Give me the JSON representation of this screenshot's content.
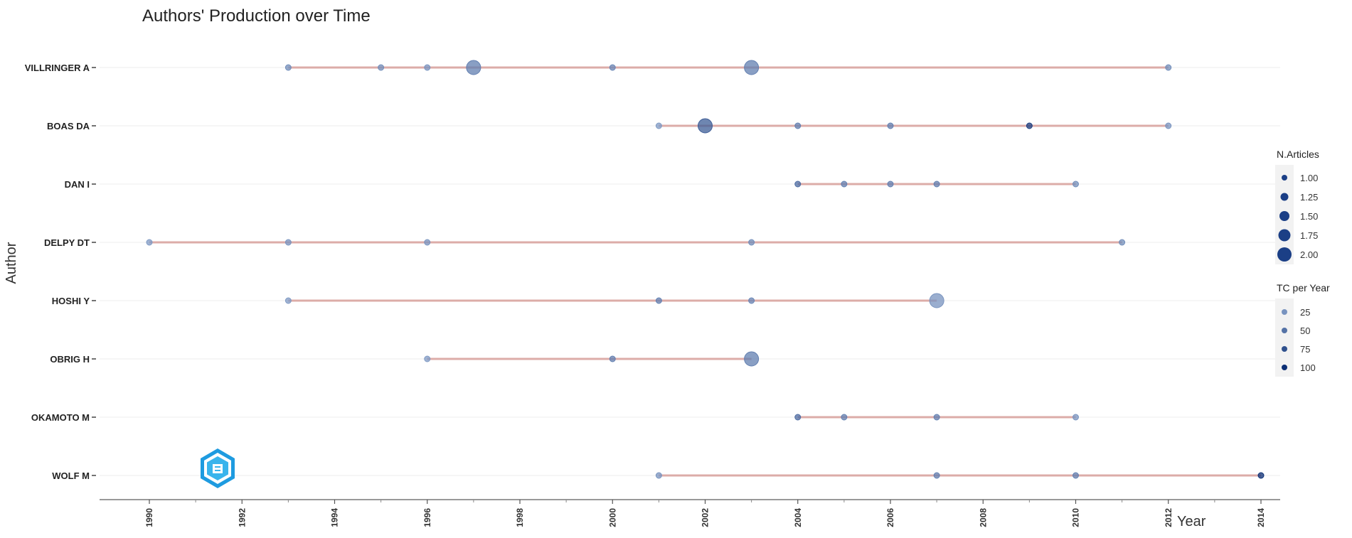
{
  "chart_data": {
    "type": "scatter",
    "title": "Authors' Production over Time",
    "xlabel": "Year",
    "ylabel": "Author",
    "xlim": [
      1989.5,
      2015.2
    ],
    "x_ticks": [
      1990,
      1992,
      1994,
      1996,
      1998,
      2000,
      2002,
      2004,
      2006,
      2008,
      2010,
      2012,
      2014
    ],
    "authors": [
      "VILLRINGER A",
      "BOAS DA",
      "DAN I",
      "DELPY DT",
      "HOSHI Y",
      "OBRIG H",
      "OKAMOTO M",
      "WOLF M"
    ],
    "series": [
      {
        "author": "VILLRINGER A",
        "points": [
          {
            "year": 1993,
            "articles": 1,
            "tc": 30
          },
          {
            "year": 1995,
            "articles": 1,
            "tc": 30
          },
          {
            "year": 1996,
            "articles": 1,
            "tc": 25
          },
          {
            "year": 1997,
            "articles": 2,
            "tc": 40
          },
          {
            "year": 2000,
            "articles": 1,
            "tc": 35
          },
          {
            "year": 2003,
            "articles": 2,
            "tc": 40
          },
          {
            "year": 2012,
            "articles": 1,
            "tc": 30
          }
        ]
      },
      {
        "author": "BOAS DA",
        "points": [
          {
            "year": 2001,
            "articles": 1,
            "tc": 20
          },
          {
            "year": 2002,
            "articles": 2,
            "tc": 65
          },
          {
            "year": 2004,
            "articles": 1,
            "tc": 40
          },
          {
            "year": 2006,
            "articles": 1,
            "tc": 40
          },
          {
            "year": 2009,
            "articles": 1,
            "tc": 90
          },
          {
            "year": 2012,
            "articles": 1,
            "tc": 25
          }
        ]
      },
      {
        "author": "DAN I",
        "points": [
          {
            "year": 2004,
            "articles": 1,
            "tc": 55
          },
          {
            "year": 2005,
            "articles": 1,
            "tc": 40
          },
          {
            "year": 2006,
            "articles": 1,
            "tc": 40
          },
          {
            "year": 2007,
            "articles": 1,
            "tc": 40
          },
          {
            "year": 2010,
            "articles": 1,
            "tc": 30
          }
        ]
      },
      {
        "author": "DELPY DT",
        "points": [
          {
            "year": 1990,
            "articles": 1,
            "tc": 20
          },
          {
            "year": 1993,
            "articles": 1,
            "tc": 25
          },
          {
            "year": 1996,
            "articles": 1,
            "tc": 25
          },
          {
            "year": 2003,
            "articles": 1,
            "tc": 30
          },
          {
            "year": 2011,
            "articles": 1,
            "tc": 30
          }
        ]
      },
      {
        "author": "HOSHI Y",
        "points": [
          {
            "year": 1993,
            "articles": 1,
            "tc": 20
          },
          {
            "year": 2001,
            "articles": 1,
            "tc": 40
          },
          {
            "year": 2003,
            "articles": 1,
            "tc": 35
          },
          {
            "year": 2007,
            "articles": 2,
            "tc": 25
          }
        ]
      },
      {
        "author": "OBRIG H",
        "points": [
          {
            "year": 1996,
            "articles": 1,
            "tc": 20
          },
          {
            "year": 2000,
            "articles": 1,
            "tc": 40
          },
          {
            "year": 2003,
            "articles": 2,
            "tc": 40
          }
        ]
      },
      {
        "author": "OKAMOTO M",
        "points": [
          {
            "year": 2004,
            "articles": 1,
            "tc": 55
          },
          {
            "year": 2005,
            "articles": 1,
            "tc": 40
          },
          {
            "year": 2007,
            "articles": 1,
            "tc": 40
          },
          {
            "year": 2010,
            "articles": 1,
            "tc": 25
          }
        ]
      },
      {
        "author": "WOLF M",
        "points": [
          {
            "year": 2001,
            "articles": 1,
            "tc": 25
          },
          {
            "year": 2007,
            "articles": 1,
            "tc": 40
          },
          {
            "year": 2010,
            "articles": 1,
            "tc": 40
          },
          {
            "year": 2014,
            "articles": 1,
            "tc": 100
          }
        ]
      }
    ],
    "legend_size": {
      "title": "N.Articles",
      "labels": [
        "1.00",
        "1.25",
        "1.50",
        "1.75",
        "2.00"
      ],
      "values": [
        1,
        1.25,
        1.5,
        1.75,
        2
      ]
    },
    "legend_color": {
      "title": "TC per Year",
      "labels": [
        "25",
        "50",
        "75",
        "100"
      ],
      "values": [
        25,
        50,
        75,
        100
      ]
    },
    "legend_position": "right",
    "grid": true,
    "colors": {
      "line": "#d9a3a0",
      "point_low": "#7f9ac4",
      "point_high": "#0b2e74",
      "grid": "#eeeeee",
      "axis": "#999999"
    }
  }
}
